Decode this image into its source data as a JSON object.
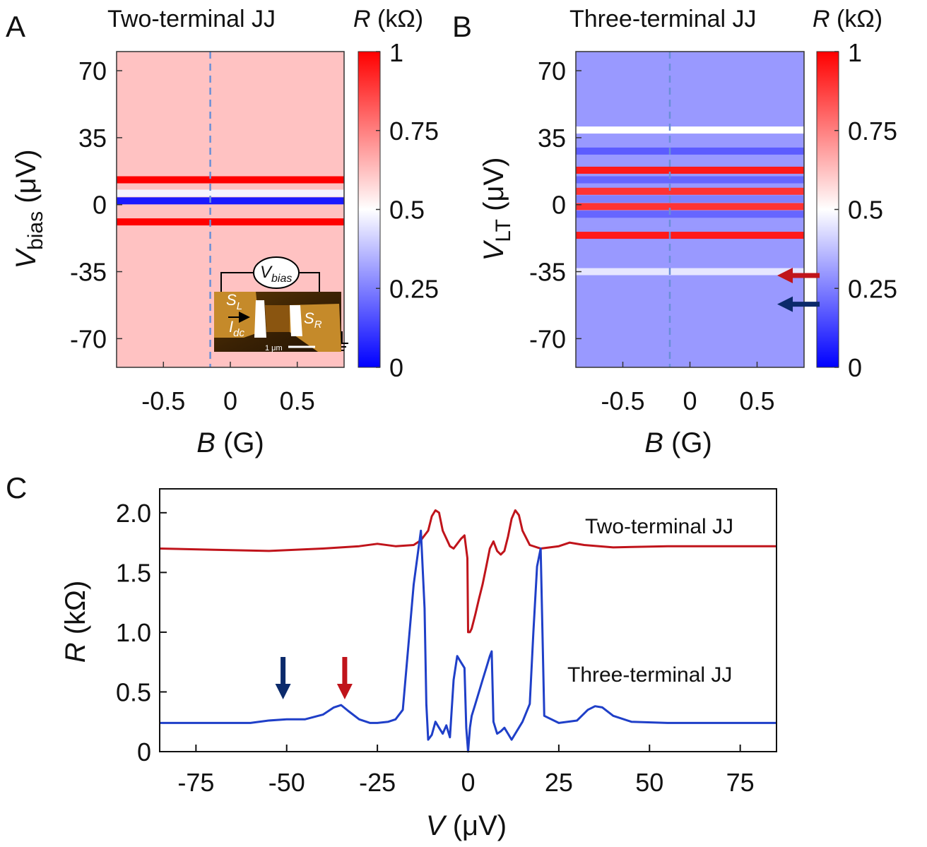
{
  "chart_data": [
    {
      "panel": "A",
      "type": "heatmap",
      "title": "Two-terminal JJ",
      "xlabel": {
        "italic": "B",
        "rest": " (G)"
      },
      "ylabel": {
        "italic": "V",
        "sub": "bias",
        "rest": " (μV)"
      },
      "xlim": [
        -0.85,
        0.85
      ],
      "ylim": [
        -85,
        80
      ],
      "xticks": [
        -0.5,
        0,
        0.5
      ],
      "xtick_labels": [
        "-0.5",
        "0",
        "0.5"
      ],
      "yticks": [
        70,
        35,
        0,
        -35,
        -70
      ],
      "ytick_labels": [
        "70",
        "35",
        "0",
        "-35",
        "-70"
      ],
      "background_R": 0.62,
      "bands": [
        {
          "V": 13,
          "R": 1.0
        },
        {
          "V": 6,
          "R": 0.48
        },
        {
          "V": 2,
          "R": 0.05
        },
        {
          "V": -9,
          "R": 1.0
        }
      ],
      "dashed_line_B": -0.15,
      "colorbar": {
        "label": {
          "italic": "R",
          "rest": " (kΩ)"
        },
        "ticks": [
          1,
          0.75,
          0.5,
          0.25,
          0
        ],
        "tick_labels": [
          "1",
          "0.75",
          "0.5",
          "0.25",
          "0"
        ]
      },
      "inset": {
        "circuit_label": {
          "italic": "V",
          "sub": "bias"
        },
        "SL": {
          "main": "S",
          "sub": "L"
        },
        "SR": {
          "main": "S",
          "sub": "R"
        },
        "Idc": {
          "main": "I",
          "sub": "dc"
        },
        "scale_bar": "1 μm"
      }
    },
    {
      "panel": "B",
      "type": "heatmap",
      "title": "Three-terminal JJ",
      "xlabel": {
        "italic": "B",
        "rest": " (G)"
      },
      "ylabel": {
        "italic": "V",
        "sub": "LT",
        "rest": " (μV)"
      },
      "xlim": [
        -0.85,
        0.85
      ],
      "ylim": [
        -85,
        80
      ],
      "xticks": [
        -0.5,
        0,
        0.5
      ],
      "xtick_labels": [
        "-0.5",
        "0",
        "0.5"
      ],
      "yticks": [
        70,
        35,
        0,
        -35,
        -70
      ],
      "ytick_labels": [
        "70",
        "35",
        "0",
        "-35",
        "-70"
      ],
      "background_R": 0.3,
      "bands": [
        {
          "V": 39,
          "R": 0.5
        },
        {
          "V": 28,
          "R": 0.18
        },
        {
          "V": 18,
          "R": 0.95
        },
        {
          "V": 13,
          "R": 0.2
        },
        {
          "V": 7,
          "R": 0.9
        },
        {
          "V": 3,
          "R": 0.25
        },
        {
          "V": -1,
          "R": 0.9
        },
        {
          "V": -5,
          "R": 0.2
        },
        {
          "V": -11,
          "R": 0.3
        },
        {
          "V": -16,
          "R": 0.95
        },
        {
          "V": -35,
          "R": 0.45
        }
      ],
      "dashed_line_B": -0.15,
      "arrows": [
        {
          "V": -37,
          "color": "#c0141b"
        },
        {
          "V": -52,
          "color": "#0b2a6b"
        }
      ],
      "colorbar": {
        "label": {
          "italic": "R",
          "rest": " (kΩ)"
        },
        "ticks": [
          1,
          0.75,
          0.5,
          0.25,
          0
        ],
        "tick_labels": [
          "1",
          "0.75",
          "0.5",
          "0.25",
          "0"
        ]
      }
    },
    {
      "panel": "C",
      "type": "line",
      "xlabel": {
        "italic": "V",
        "rest": " (μV)"
      },
      "ylabel": {
        "italic": "R",
        "rest": " (kΩ)"
      },
      "xlim": [
        -85,
        85
      ],
      "ylim": [
        0,
        2.2
      ],
      "xticks": [
        -75,
        -50,
        -25,
        0,
        25,
        50,
        75
      ],
      "xtick_labels": [
        "-75",
        "-50",
        "-25",
        "0",
        "25",
        "50",
        "75"
      ],
      "yticks": [
        0,
        0.5,
        1.0,
        1.5,
        2.0
      ],
      "ytick_labels": [
        "0",
        "0.5",
        "1.0",
        "1.5",
        "2.0"
      ],
      "series": [
        {
          "name": "Two-terminal JJ",
          "color": "#c0141b",
          "x": [
            -85,
            -70,
            -55,
            -40,
            -30,
            -25,
            -20,
            -15,
            -13,
            -11,
            -10,
            -9,
            -8,
            -7,
            -5,
            -4,
            -3,
            -2,
            -1,
            -0.2,
            0,
            0.5,
            1,
            2,
            3,
            4,
            5,
            6,
            7,
            8,
            9,
            10,
            11,
            12,
            13,
            14,
            15,
            17,
            20,
            25,
            28,
            32,
            40,
            55,
            70,
            85
          ],
          "y": [
            1.7,
            1.69,
            1.68,
            1.7,
            1.72,
            1.74,
            1.72,
            1.73,
            1.77,
            1.85,
            1.97,
            2.02,
            2.0,
            1.85,
            1.72,
            1.7,
            1.74,
            1.78,
            1.81,
            1.62,
            1.0,
            1.0,
            1.03,
            1.15,
            1.28,
            1.4,
            1.55,
            1.7,
            1.76,
            1.68,
            1.65,
            1.68,
            1.8,
            1.95,
            2.02,
            1.98,
            1.85,
            1.73,
            1.7,
            1.72,
            1.75,
            1.73,
            1.71,
            1.72,
            1.72,
            1.72
          ]
        },
        {
          "name": "Three-terminal JJ",
          "color": "#1f3fc8",
          "x": [
            -85,
            -70,
            -60,
            -55,
            -50,
            -45,
            -40,
            -37,
            -35,
            -33,
            -30,
            -27,
            -25,
            -22,
            -20,
            -18,
            -15,
            -13,
            -12,
            -11.5,
            -11,
            -10,
            -9,
            -8,
            -7,
            -6,
            -5,
            -4,
            -3,
            -2,
            -1,
            -0.5,
            0,
            0.5,
            1,
            2,
            3,
            4,
            5,
            6,
            6.5,
            7,
            8,
            9,
            10,
            11,
            12,
            15,
            17,
            18,
            19,
            20,
            21,
            25,
            30,
            33,
            35,
            37,
            40,
            45,
            55,
            70,
            85
          ],
          "y": [
            0.24,
            0.24,
            0.24,
            0.26,
            0.27,
            0.27,
            0.31,
            0.37,
            0.39,
            0.34,
            0.27,
            0.24,
            0.24,
            0.25,
            0.27,
            0.35,
            1.4,
            1.85,
            1.2,
            0.4,
            0.1,
            0.14,
            0.25,
            0.2,
            0.15,
            0.22,
            0.12,
            0.6,
            0.8,
            0.75,
            0.7,
            0.2,
            0.0,
            0.2,
            0.3,
            0.4,
            0.5,
            0.6,
            0.7,
            0.8,
            0.84,
            0.25,
            0.15,
            0.17,
            0.2,
            0.15,
            0.1,
            0.25,
            0.4,
            1.0,
            1.55,
            1.7,
            0.3,
            0.24,
            0.26,
            0.35,
            0.38,
            0.37,
            0.3,
            0.25,
            0.24,
            0.24,
            0.24
          ]
        }
      ],
      "arrows": [
        {
          "x": -51,
          "color": "#0b2a6b"
        },
        {
          "x": -34,
          "color": "#c0141b"
        }
      ]
    }
  ]
}
